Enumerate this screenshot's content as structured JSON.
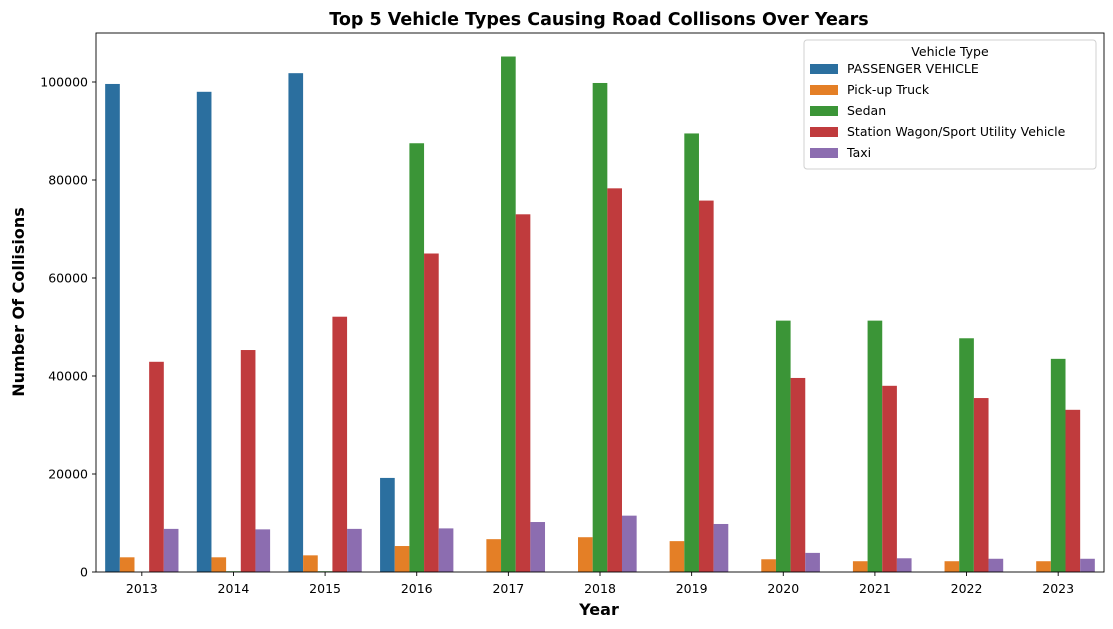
{
  "chart_data": {
    "type": "bar",
    "title": "Top 5 Vehicle Types Causing Road Collisons Over Years",
    "xlabel": "Year",
    "ylabel": "Number Of Collisions",
    "ylim": [
      0,
      110000
    ],
    "yticks": [
      0,
      20000,
      40000,
      60000,
      80000,
      100000
    ],
    "grid": false,
    "legend": {
      "title": "Vehicle Type",
      "placement": "top-right"
    },
    "categories": [
      "2013",
      "2014",
      "2015",
      "2016",
      "2017",
      "2018",
      "2019",
      "2020",
      "2021",
      "2022",
      "2023"
    ],
    "series": [
      {
        "name": "PASSENGER VEHICLE",
        "color": "#2b6f9f",
        "values": [
          99600,
          98000,
          101800,
          19200,
          0,
          0,
          0,
          0,
          0,
          0,
          0
        ]
      },
      {
        "name": "Pick-up Truck",
        "color": "#e47f26",
        "values": [
          3000,
          3000,
          3400,
          5300,
          6700,
          7100,
          6300,
          2600,
          2200,
          2200,
          2200
        ]
      },
      {
        "name": "Sedan",
        "color": "#3b9537",
        "values": [
          0,
          150,
          150,
          87500,
          105200,
          99800,
          89500,
          51300,
          51300,
          47700,
          43500
        ]
      },
      {
        "name": "Station Wagon/Sport Utility Vehicle",
        "color": "#c03b3d",
        "values": [
          42900,
          45300,
          52100,
          65000,
          73000,
          78300,
          75800,
          39600,
          38000,
          35500,
          33100
        ]
      },
      {
        "name": "Taxi",
        "color": "#8c6db0",
        "values": [
          8800,
          8700,
          8800,
          8900,
          10200,
          11500,
          9800,
          3900,
          2800,
          2700,
          2700
        ]
      }
    ]
  }
}
